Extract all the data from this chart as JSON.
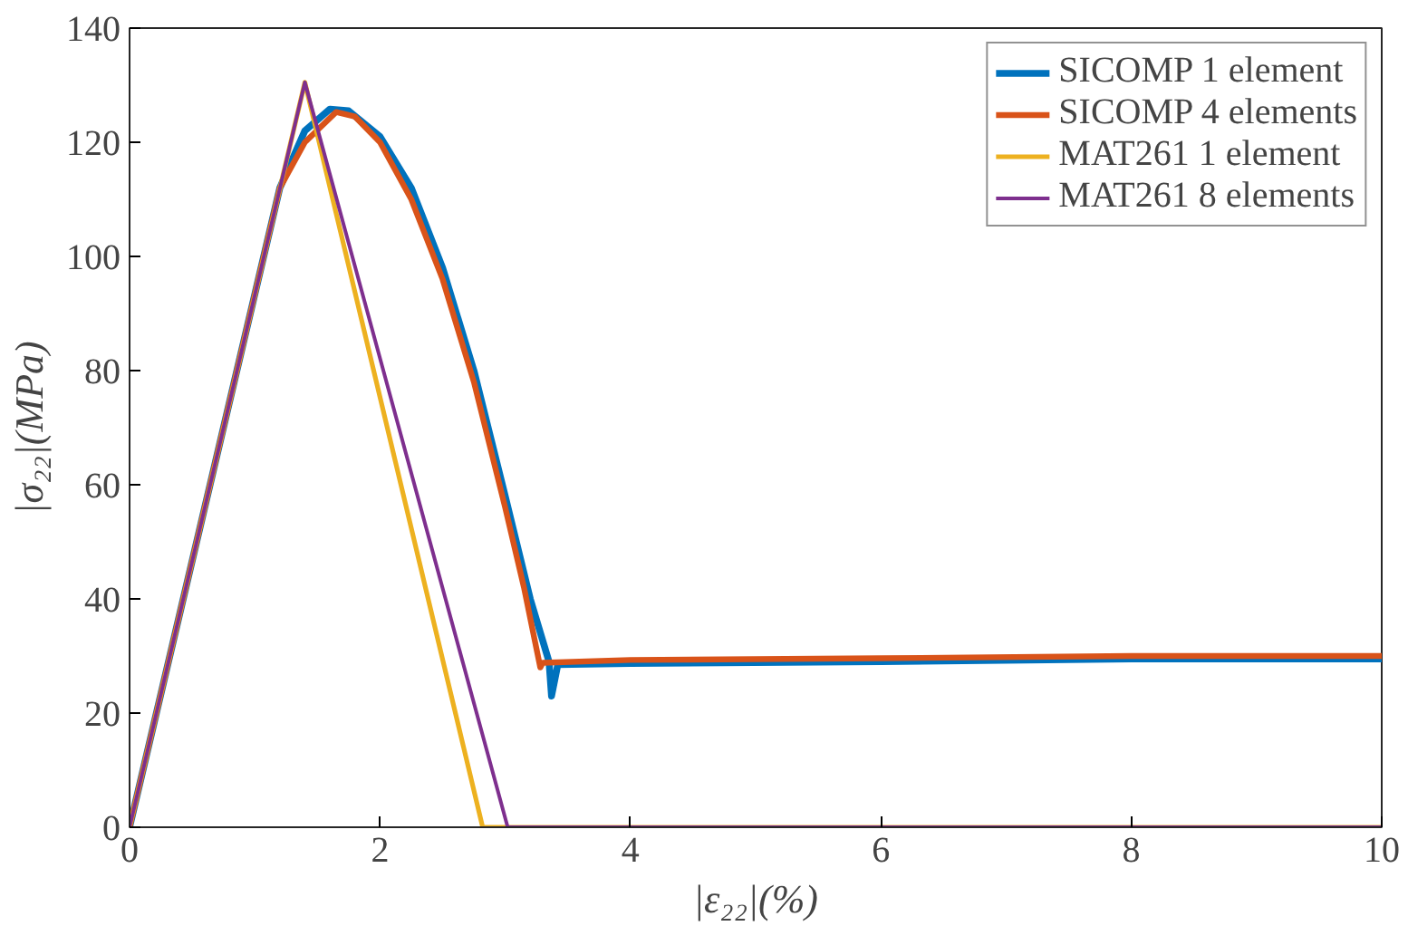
{
  "chart_data": {
    "type": "line",
    "xlabel": "|ε₂₂|(%)",
    "ylabel": "|σ₂₂|(MPa)",
    "xlim": [
      0,
      10
    ],
    "ylim": [
      0,
      140
    ],
    "xticks": [
      0,
      2,
      4,
      6,
      8,
      10
    ],
    "yticks": [
      0,
      20,
      40,
      60,
      80,
      100,
      120,
      140
    ],
    "grid": false,
    "legend": "top right",
    "line_style": "solid",
    "marker": "none",
    "series": [
      {
        "name": "SICOMP 1 element",
        "color": "#0072bd",
        "x": [
          0,
          1.2,
          1.4,
          1.6,
          1.75,
          2.0,
          2.25,
          2.5,
          2.75,
          3.0,
          3.2,
          3.35,
          3.37,
          3.42,
          4,
          6,
          8,
          10
        ],
        "values": [
          0,
          112,
          122,
          125.8,
          125.5,
          121,
          112,
          98,
          80,
          58,
          40,
          29,
          23,
          28.5,
          28.7,
          29,
          29.5,
          29.5
        ]
      },
      {
        "name": "SICOMP 4 elements",
        "color": "#d95319",
        "x": [
          0,
          1.2,
          1.4,
          1.65,
          1.8,
          2.0,
          2.25,
          2.5,
          2.75,
          3.0,
          3.15,
          3.28,
          3.3,
          4,
          6,
          8,
          10
        ],
        "values": [
          0,
          112,
          120,
          125.3,
          124.5,
          120,
          110,
          96,
          78,
          56,
          42,
          28,
          28.8,
          29.3,
          29.6,
          30,
          30
        ]
      },
      {
        "name": "MAT261 1 element",
        "color": "#edb120",
        "x": [
          0,
          1.4,
          2.82,
          10
        ],
        "values": [
          0,
          130.5,
          0,
          0
        ]
      },
      {
        "name": "MAT261 8 elements",
        "color": "#7e2f8e",
        "x": [
          0,
          1.4,
          3.02,
          10
        ],
        "values": [
          0,
          130.5,
          0,
          0
        ]
      }
    ]
  }
}
